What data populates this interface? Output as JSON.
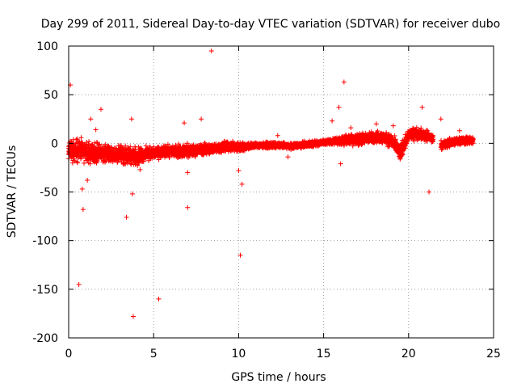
{
  "chart_data": {
    "type": "scatter",
    "title": "Day 299 of 2011, Sidereal Day-to-day VTEC variation (SDTVAR) for receiver dubo",
    "xlabel": "GPS time / hours",
    "ylabel": "SDTVAR / TECUs",
    "xlim": [
      0,
      25
    ],
    "ylim": [
      -200,
      100
    ],
    "xticks": [
      0,
      5,
      10,
      15,
      20,
      25
    ],
    "xtick_labels": [
      "0",
      "5",
      "10",
      "15",
      "20",
      "25"
    ],
    "yticks": [
      -200,
      -150,
      -100,
      -50,
      0,
      50,
      100
    ],
    "ytick_labels": [
      "-200",
      "-150",
      "-100",
      "-50",
      "0",
      "50",
      "100"
    ],
    "grid": true,
    "marker": "+",
    "series_color": "#ff0000",
    "band_series": [
      {
        "name": "scatter band",
        "points": [
          [
            0.0,
            -8,
            14
          ],
          [
            0.5,
            -6,
            16
          ],
          [
            1.0,
            -9,
            14
          ],
          [
            1.5,
            -10,
            14
          ],
          [
            2.0,
            -10,
            12
          ],
          [
            2.5,
            -11,
            11
          ],
          [
            3.0,
            -12,
            12
          ],
          [
            3.5,
            -12,
            12
          ],
          [
            4.0,
            -13,
            12
          ],
          [
            4.5,
            -11,
            10
          ],
          [
            5.0,
            -10,
            8
          ],
          [
            5.5,
            -9,
            8
          ],
          [
            6.0,
            -8,
            8
          ],
          [
            6.5,
            -8,
            9
          ],
          [
            7.0,
            -8,
            9
          ],
          [
            7.5,
            -7,
            8
          ],
          [
            8.0,
            -6,
            8
          ],
          [
            8.5,
            -5,
            7
          ],
          [
            9.0,
            -4,
            7
          ],
          [
            9.5,
            -3,
            7
          ],
          [
            10.0,
            -4,
            7
          ],
          [
            10.5,
            -3,
            5
          ],
          [
            11.0,
            -2,
            4
          ],
          [
            11.5,
            -2,
            4
          ],
          [
            12.0,
            -2,
            4
          ],
          [
            12.5,
            -2,
            4
          ],
          [
            13.0,
            -3,
            4
          ],
          [
            13.5,
            -2,
            4
          ],
          [
            14.0,
            -1,
            4
          ],
          [
            14.5,
            0,
            4
          ],
          [
            15.0,
            1,
            4
          ],
          [
            15.5,
            2,
            4
          ],
          [
            16.0,
            3,
            6
          ],
          [
            16.5,
            4,
            8
          ],
          [
            17.0,
            4,
            8
          ],
          [
            17.5,
            5,
            8
          ],
          [
            18.0,
            6,
            8
          ],
          [
            18.5,
            6,
            8
          ],
          [
            19.0,
            3,
            9
          ],
          [
            19.5,
            -10,
            12
          ],
          [
            20.0,
            9,
            8
          ],
          [
            20.5,
            10,
            8
          ],
          [
            21.0,
            8,
            8
          ],
          [
            21.4,
            5,
            6
          ],
          [
            22.0,
            -2,
            6
          ],
          [
            22.5,
            1,
            6
          ],
          [
            23.0,
            3,
            6
          ],
          [
            23.5,
            3,
            6
          ],
          [
            23.8,
            2,
            5
          ]
        ]
      }
    ],
    "outliers": [
      {
        "x": 0.1,
        "y": 60
      },
      {
        "x": 0.6,
        "y": -145
      },
      {
        "x": 0.8,
        "y": -47
      },
      {
        "x": 0.85,
        "y": -68
      },
      {
        "x": 1.1,
        "y": -38
      },
      {
        "x": 1.3,
        "y": 25
      },
      {
        "x": 1.6,
        "y": 14
      },
      {
        "x": 1.9,
        "y": 35
      },
      {
        "x": 3.4,
        "y": -76
      },
      {
        "x": 3.7,
        "y": 25
      },
      {
        "x": 3.75,
        "y": -52
      },
      {
        "x": 3.8,
        "y": -178
      },
      {
        "x": 5.3,
        "y": -160
      },
      {
        "x": 6.8,
        "y": 21
      },
      {
        "x": 7.0,
        "y": -66
      },
      {
        "x": 7.0,
        "y": -30
      },
      {
        "x": 7.8,
        "y": 25
      },
      {
        "x": 8.4,
        "y": 95
      },
      {
        "x": 10.0,
        "y": -28
      },
      {
        "x": 10.1,
        "y": -115
      },
      {
        "x": 10.2,
        "y": -42
      },
      {
        "x": 12.9,
        "y": -14
      },
      {
        "x": 15.5,
        "y": 23
      },
      {
        "x": 15.9,
        "y": 37
      },
      {
        "x": 16.0,
        "y": -21
      },
      {
        "x": 16.2,
        "y": 63
      },
      {
        "x": 16.6,
        "y": 16
      },
      {
        "x": 18.1,
        "y": 20
      },
      {
        "x": 19.1,
        "y": 18
      },
      {
        "x": 20.8,
        "y": 37
      },
      {
        "x": 21.2,
        "y": -50
      },
      {
        "x": 21.9,
        "y": 25
      },
      {
        "x": 23.0,
        "y": 13
      },
      {
        "x": 2.2,
        "y": -18
      },
      {
        "x": 4.2,
        "y": -27
      },
      {
        "x": 12.3,
        "y": 8
      }
    ]
  }
}
